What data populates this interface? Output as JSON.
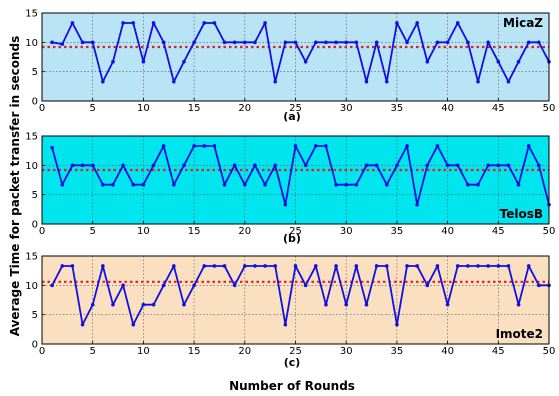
{
  "chart_data": {
    "type": "line",
    "xlabel": "Number of Rounds",
    "ylabel": "Average Time for packet transfer in seconds",
    "xlim": [
      0,
      50
    ],
    "x_ticks": [
      "0",
      "5",
      "10",
      "15",
      "20",
      "25",
      "30",
      "35",
      "40",
      "45",
      "50"
    ],
    "y_ticks": [
      "0",
      "5",
      "10",
      "15"
    ],
    "grid": true,
    "line_color": "#1010e0",
    "mean_line_color": "#e02020",
    "mean_line_style": "dotted",
    "panels": [
      {
        "label": "(a)",
        "device": "MicaZ",
        "background": "#b8e4f5",
        "ylim": [
          0,
          15
        ],
        "x": [
          1,
          2,
          3,
          4,
          5,
          6,
          7,
          8,
          9,
          10,
          11,
          12,
          13,
          14,
          15,
          16,
          17,
          18,
          19,
          20,
          21,
          22,
          23,
          24,
          25,
          26,
          27,
          28,
          29,
          30,
          31,
          32,
          33,
          34,
          35,
          36,
          37,
          38,
          39,
          40,
          41,
          42,
          43,
          44,
          45,
          46,
          47,
          48,
          49,
          50
        ],
        "values": [
          10,
          9.7,
          13.3,
          10,
          10,
          3.3,
          6.7,
          13.3,
          13.3,
          6.7,
          13.3,
          10,
          3.3,
          6.7,
          10,
          13.3,
          13.3,
          10,
          10,
          10,
          10,
          13.3,
          3.3,
          10,
          10,
          6.7,
          10,
          10,
          10,
          10,
          10,
          3.3,
          10,
          3.3,
          13.3,
          10,
          13.3,
          6.7,
          10,
          10,
          13.3,
          10,
          3.3,
          10,
          6.7,
          3.3,
          6.7,
          10,
          10,
          6.7
        ],
        "mean": 9.2
      },
      {
        "label": "(b)",
        "device": "TelosB",
        "background": "#00e5ee",
        "ylim": [
          0,
          15
        ],
        "x": [
          1,
          2,
          3,
          4,
          5,
          6,
          7,
          8,
          9,
          10,
          11,
          12,
          13,
          14,
          15,
          16,
          17,
          18,
          19,
          20,
          21,
          22,
          23,
          24,
          25,
          26,
          27,
          28,
          29,
          30,
          31,
          32,
          33,
          34,
          35,
          36,
          37,
          38,
          39,
          40,
          41,
          42,
          43,
          44,
          45,
          46,
          47,
          48,
          49,
          50
        ],
        "values": [
          13,
          6.7,
          10,
          10,
          10,
          6.7,
          6.7,
          10,
          6.7,
          6.7,
          10,
          13.3,
          6.7,
          10,
          13.3,
          13.3,
          13.3,
          6.7,
          10,
          6.7,
          10,
          6.7,
          10,
          3.3,
          13.3,
          10,
          13.3,
          13.3,
          6.7,
          6.7,
          6.7,
          10,
          10,
          6.7,
          10,
          13.3,
          3.3,
          10,
          13.3,
          10,
          10,
          6.7,
          6.7,
          10,
          10,
          10,
          6.7,
          13.3,
          10,
          3.3
        ],
        "mean": 9.2
      },
      {
        "label": "(c)",
        "device": "Imote2",
        "background": "#fae0c0",
        "ylim": [
          0,
          15
        ],
        "x": [
          1,
          2,
          3,
          4,
          5,
          6,
          7,
          8,
          9,
          10,
          11,
          12,
          13,
          14,
          15,
          16,
          17,
          18,
          19,
          20,
          21,
          22,
          23,
          24,
          25,
          26,
          27,
          28,
          29,
          30,
          31,
          32,
          33,
          34,
          35,
          36,
          37,
          38,
          39,
          40,
          41,
          42,
          43,
          44,
          45,
          46,
          47,
          48,
          49,
          50
        ],
        "values": [
          10,
          13.3,
          13.3,
          3.3,
          6.7,
          13.3,
          6.7,
          10,
          3.3,
          6.7,
          6.7,
          10,
          13.3,
          6.7,
          10,
          13.3,
          13.3,
          13.3,
          10,
          13.3,
          13.3,
          13.3,
          13.3,
          3.3,
          13.3,
          10,
          13.3,
          6.7,
          13.3,
          6.7,
          13.3,
          6.7,
          13.3,
          13.3,
          3.3,
          13.3,
          13.3,
          10,
          13.3,
          6.7,
          13.3,
          13.3,
          13.3,
          13.3,
          13.3,
          13.3,
          6.7,
          13.3,
          10,
          10
        ],
        "mean": 10.6
      }
    ]
  }
}
